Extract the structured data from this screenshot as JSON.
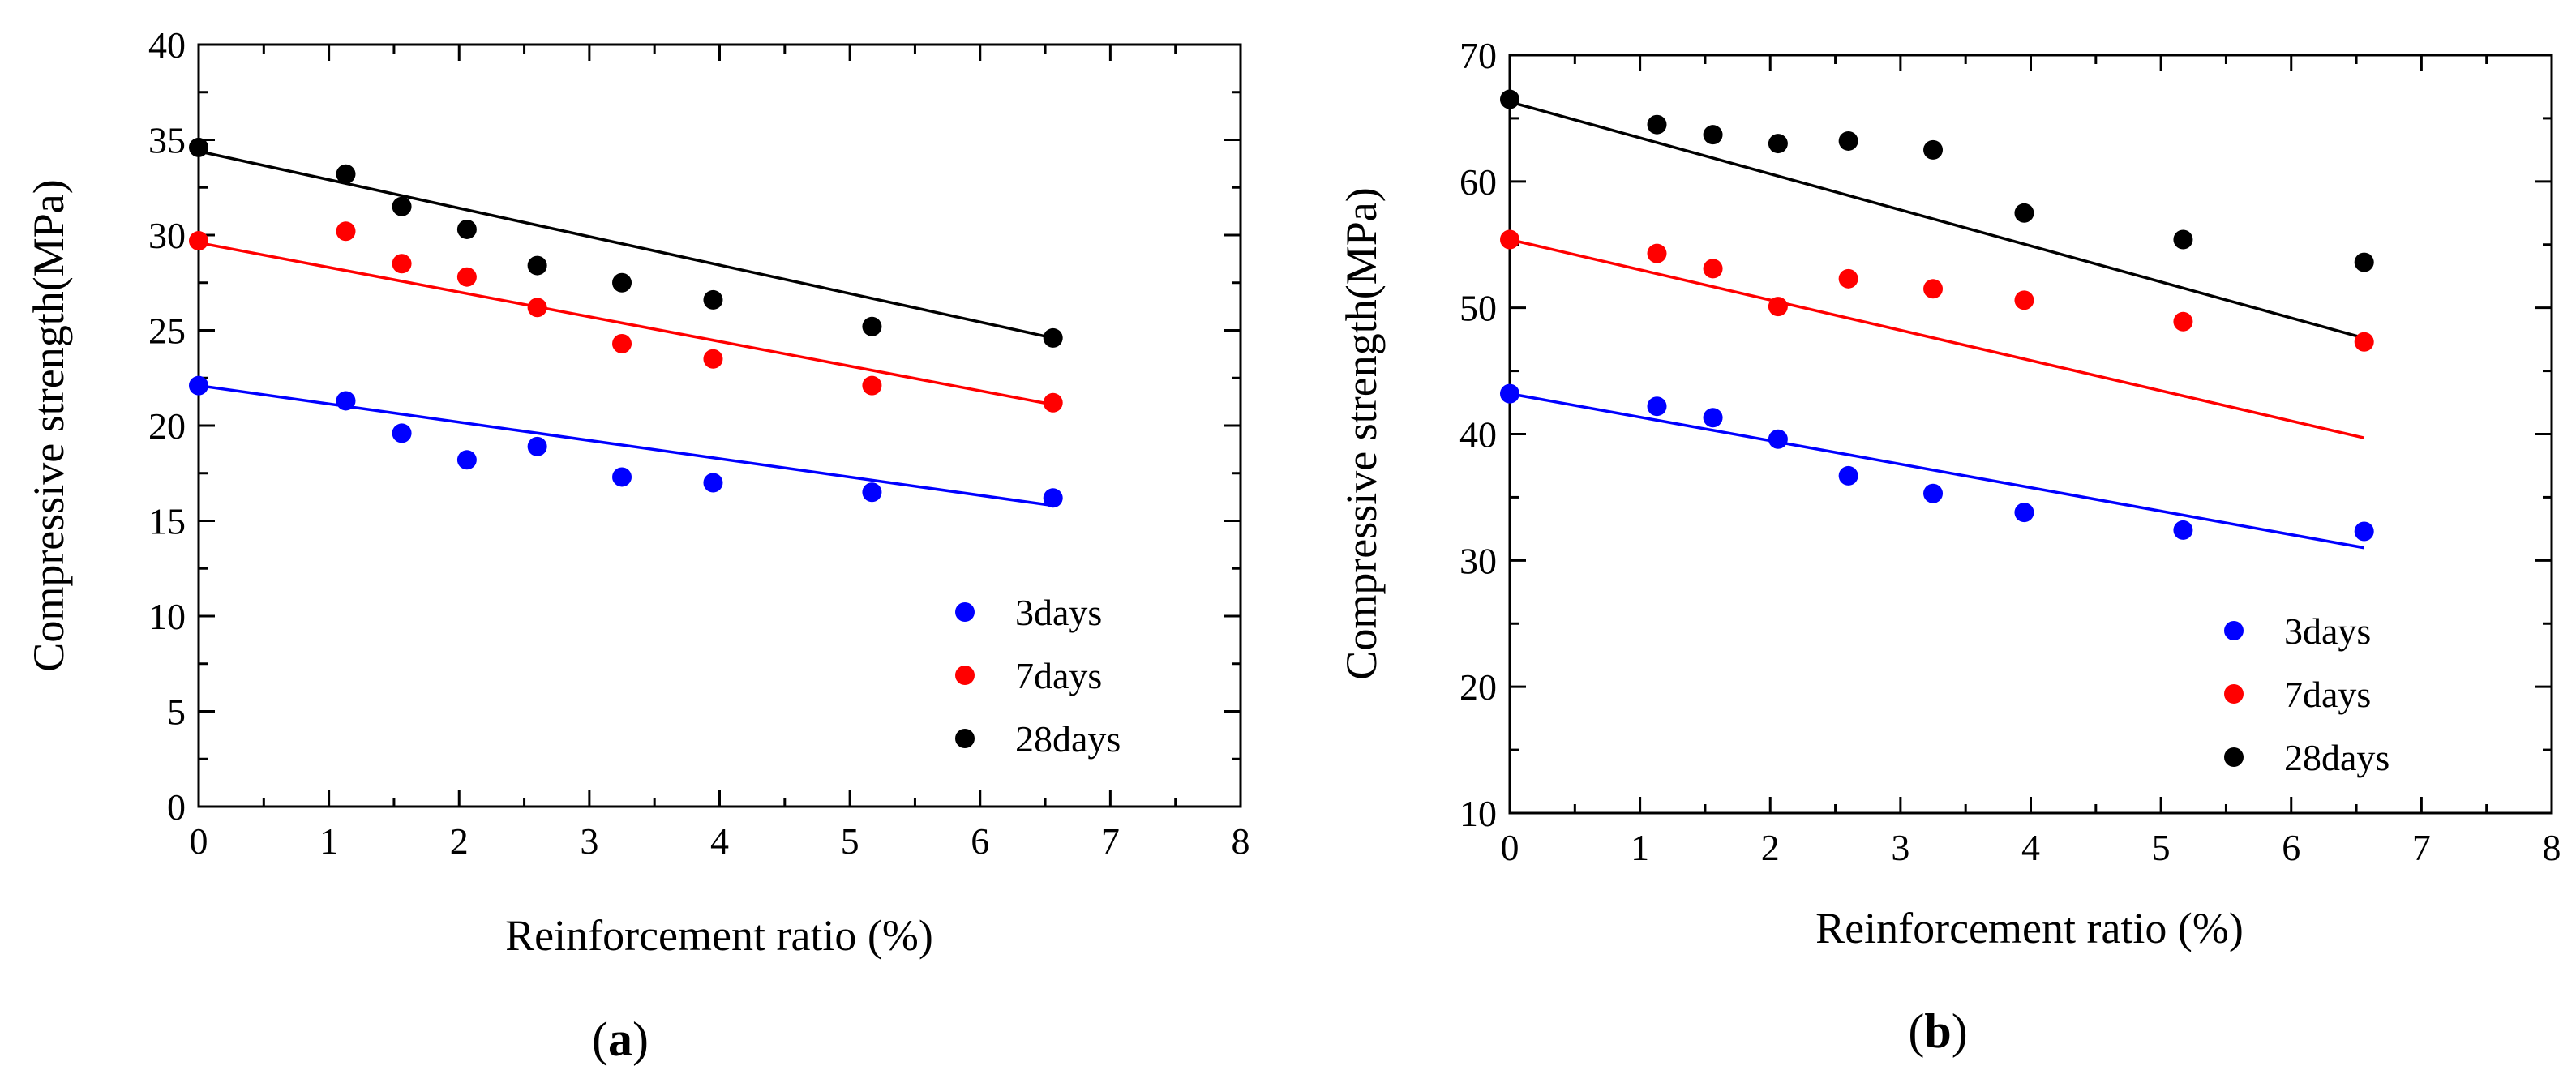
{
  "chart_data": [
    {
      "type": "scatter",
      "panel_label": "(a)",
      "panel_letter": "a",
      "xlabel": "Reinforcement ratio (%)",
      "ylabel": "Compressive strength(MPa)",
      "xlim": [
        0,
        8
      ],
      "ylim": [
        0,
        40
      ],
      "xticks": [
        0,
        1,
        2,
        3,
        4,
        5,
        6,
        7,
        8
      ],
      "yticks": [
        0,
        5,
        10,
        15,
        20,
        25,
        30,
        35,
        40
      ],
      "grid": false,
      "legend_position": "lower-right",
      "x": [
        0,
        1.13,
        1.56,
        2.06,
        2.6,
        3.25,
        3.95,
        5.17,
        6.56
      ],
      "series": [
        {
          "name": "3days",
          "color": "#0000ff",
          "values": [
            22.1,
            21.3,
            19.6,
            18.2,
            18.9,
            17.3,
            17.0,
            16.5,
            16.2
          ],
          "fit": [
            [
              0,
              22.1
            ],
            [
              6.56,
              15.8
            ]
          ]
        },
        {
          "name": "7days",
          "color": "#ff0000",
          "values": [
            29.7,
            30.2,
            28.5,
            27.8,
            26.2,
            24.3,
            23.5,
            22.1,
            21.2
          ],
          "fit": [
            [
              0,
              29.6
            ],
            [
              6.56,
              21.1
            ]
          ]
        },
        {
          "name": "28days",
          "color": "#000000",
          "values": [
            34.6,
            33.2,
            31.5,
            30.3,
            28.4,
            27.5,
            26.6,
            25.2,
            24.6
          ],
          "fit": [
            [
              0,
              34.4
            ],
            [
              6.56,
              24.6
            ]
          ]
        }
      ]
    },
    {
      "type": "scatter",
      "panel_label": "(b)",
      "panel_letter": "b",
      "xlabel": "Reinforcement ratio (%)",
      "ylabel": "Compressive strength(MPa)",
      "xlim": [
        0,
        8
      ],
      "ylim": [
        10,
        70
      ],
      "xticks": [
        0,
        1,
        2,
        3,
        4,
        5,
        6,
        7,
        8
      ],
      "yticks": [
        10,
        20,
        30,
        40,
        50,
        60,
        70
      ],
      "grid": false,
      "legend_position": "lower-right",
      "x": [
        0,
        1.13,
        1.56,
        2.06,
        2.6,
        3.25,
        3.95,
        5.17,
        6.56
      ],
      "series": [
        {
          "name": "3days",
          "color": "#0000ff",
          "values": [
            43.2,
            42.2,
            41.3,
            39.6,
            36.7,
            35.3,
            33.8,
            32.4,
            32.3
          ],
          "fit": [
            [
              0,
              43.2
            ],
            [
              6.56,
              31.0
            ]
          ]
        },
        {
          "name": "7days",
          "color": "#ff0000",
          "values": [
            55.4,
            54.3,
            53.1,
            50.1,
            52.3,
            51.5,
            50.6,
            48.9,
            47.3
          ],
          "fit": [
            [
              0,
              55.4
            ],
            [
              6.56,
              39.7
            ]
          ]
        },
        {
          "name": "28days",
          "color": "#000000",
          "values": [
            66.5,
            64.5,
            63.7,
            63.0,
            63.2,
            62.5,
            57.5,
            55.4,
            53.6
          ],
          "fit": [
            [
              0,
              66.3
            ],
            [
              6.56,
              47.6
            ]
          ]
        }
      ]
    }
  ]
}
